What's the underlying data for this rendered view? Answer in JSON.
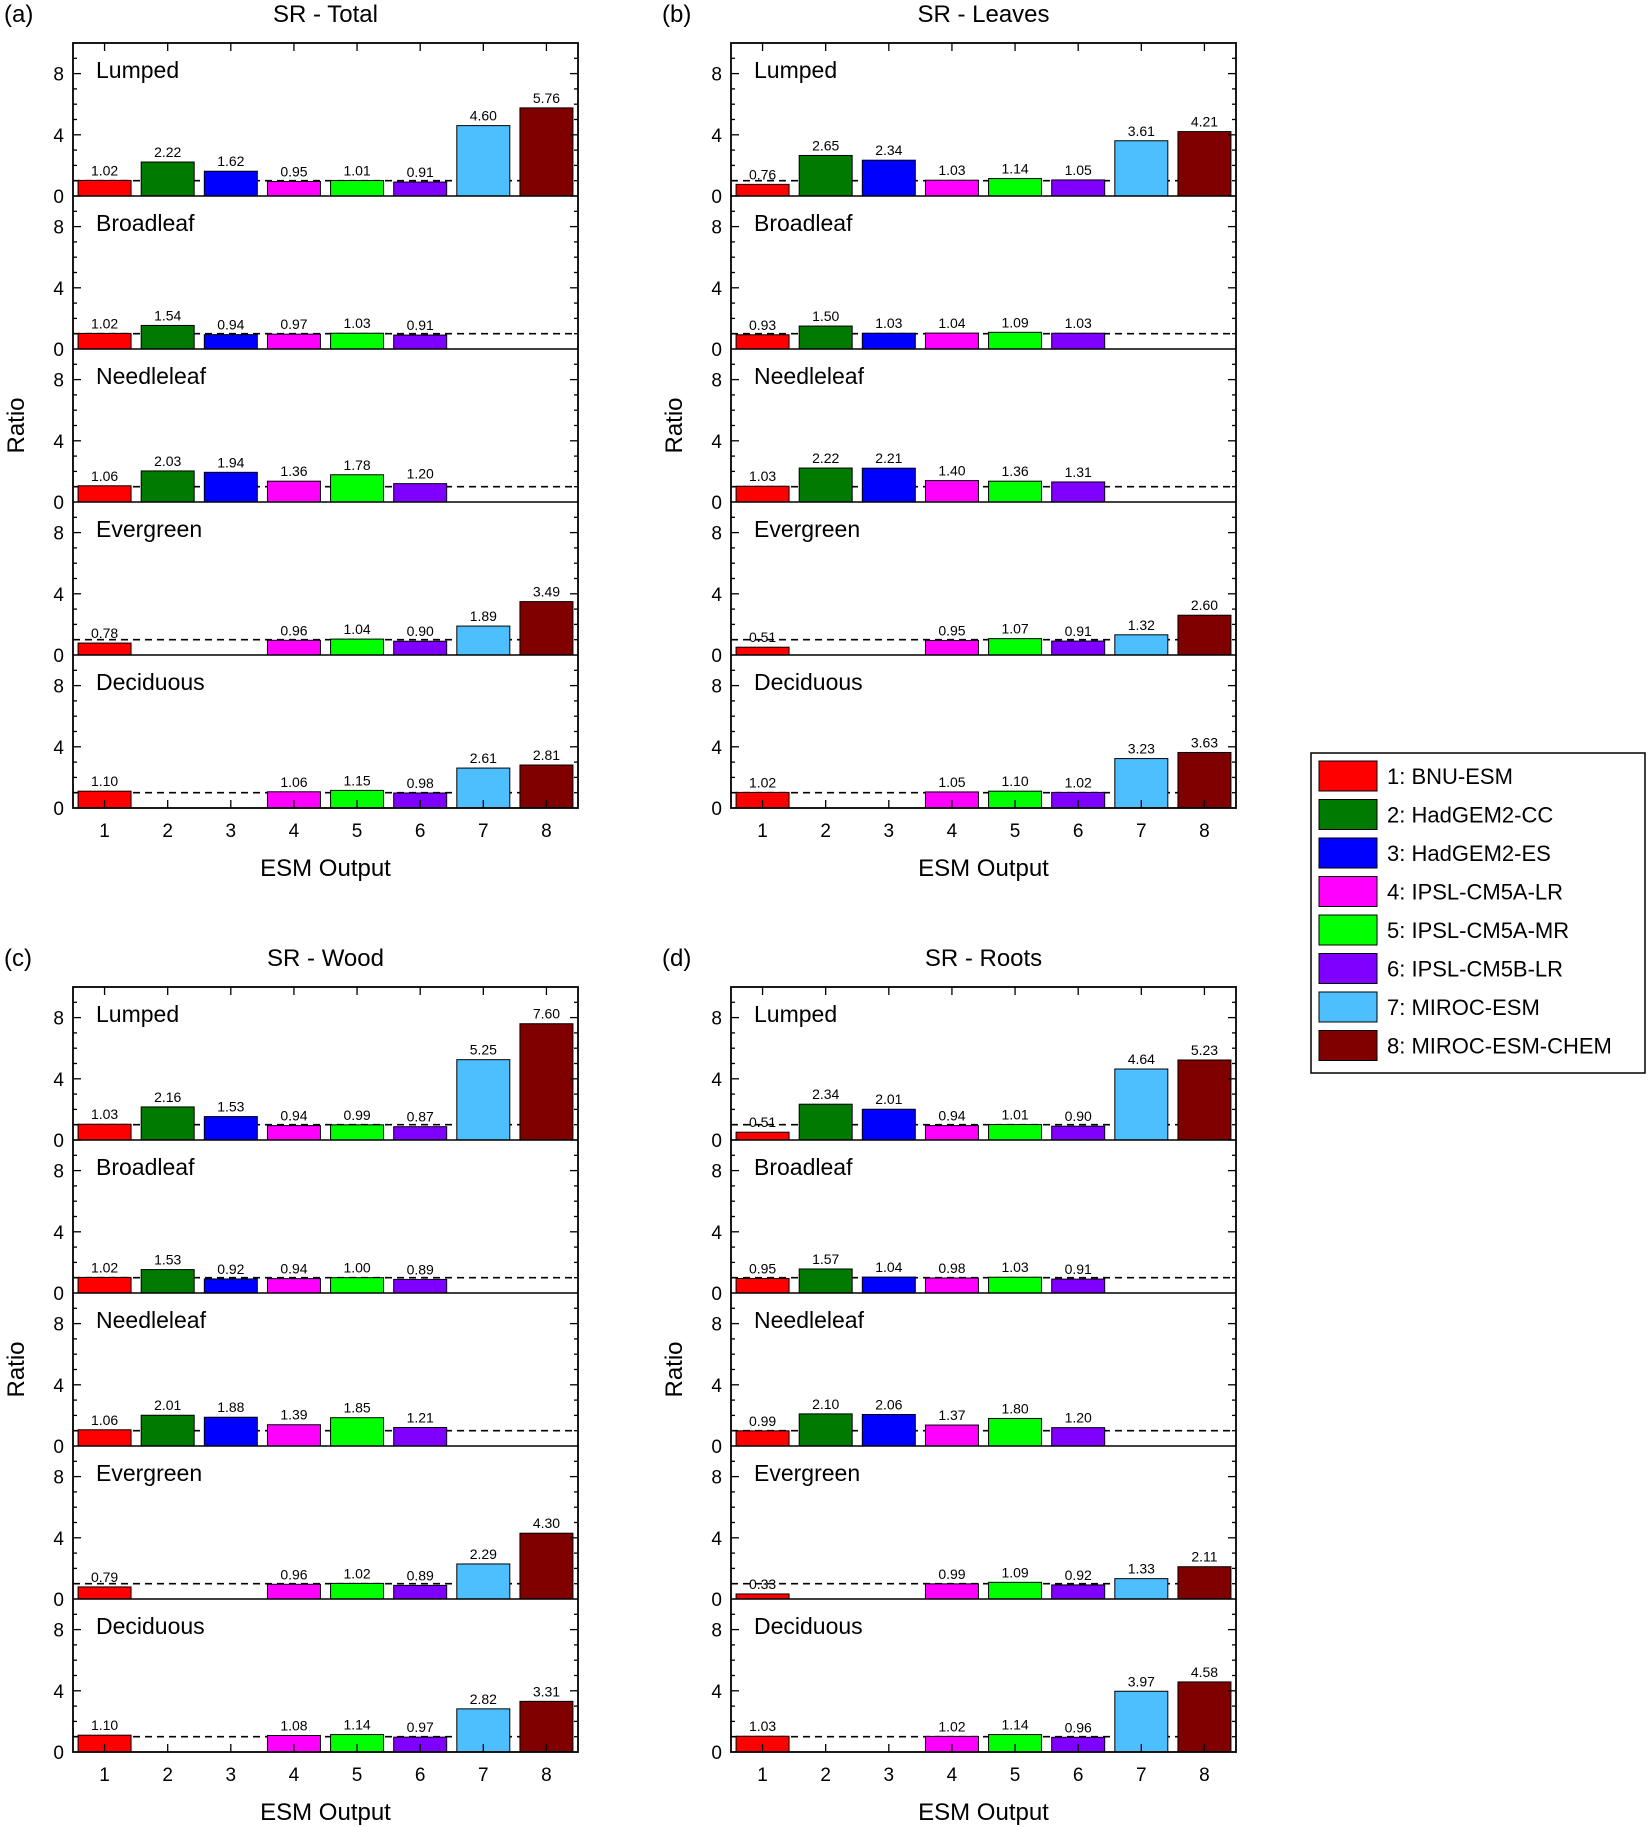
{
  "chart_data": [
    {
      "id": "a",
      "panel_label": "(a)",
      "type": "bar",
      "title": "SR - Total",
      "xlabel": "ESM Output",
      "ylabel": "Ratio",
      "categories": [
        "1",
        "2",
        "3",
        "4",
        "5",
        "6",
        "7",
        "8"
      ],
      "ylim": [
        0,
        10
      ],
      "yticks": [
        "0",
        "4",
        "8"
      ],
      "reference_line": 1,
      "subplots": [
        {
          "name": "Lumped",
          "values": [
            1.02,
            2.22,
            1.62,
            0.95,
            1.01,
            0.91,
            4.6,
            5.76
          ],
          "labels": [
            "1.02",
            "2.22",
            "1.62",
            "0.95",
            "1.01",
            "0.91",
            "4.60",
            "5.76"
          ]
        },
        {
          "name": "Broadleaf",
          "values": [
            1.02,
            1.54,
            0.94,
            0.97,
            1.03,
            0.91,
            null,
            null
          ],
          "labels": [
            "1.02",
            "1.54",
            "0.94",
            "0.97",
            "1.03",
            "0.91",
            "",
            ""
          ]
        },
        {
          "name": "Needleleaf",
          "values": [
            1.06,
            2.03,
            1.94,
            1.36,
            1.78,
            1.2,
            null,
            null
          ],
          "labels": [
            "1.06",
            "2.03",
            "1.94",
            "1.36",
            "1.78",
            "1.20",
            "",
            ""
          ]
        },
        {
          "name": "Evergreen",
          "values": [
            0.78,
            null,
            null,
            0.96,
            1.04,
            0.9,
            1.89,
            3.49
          ],
          "labels": [
            "0.78",
            "",
            "",
            "0.96",
            "1.04",
            "0.90",
            "1.89",
            "3.49"
          ]
        },
        {
          "name": "Deciduous",
          "values": [
            1.1,
            null,
            null,
            1.06,
            1.15,
            0.98,
            2.61,
            2.81
          ],
          "labels": [
            "1.10",
            "",
            "",
            "1.06",
            "1.15",
            "0.98",
            "2.61",
            "2.81"
          ]
        }
      ]
    },
    {
      "id": "b",
      "panel_label": "(b)",
      "type": "bar",
      "title": "SR - Leaves",
      "xlabel": "ESM Output",
      "ylabel": "Ratio",
      "categories": [
        "1",
        "2",
        "3",
        "4",
        "5",
        "6",
        "7",
        "8"
      ],
      "ylim": [
        0,
        10
      ],
      "yticks": [
        "0",
        "4",
        "8"
      ],
      "reference_line": 1,
      "subplots": [
        {
          "name": "Lumped",
          "values": [
            0.76,
            2.65,
            2.34,
            1.03,
            1.14,
            1.05,
            3.61,
            4.21
          ],
          "labels": [
            "0.76",
            "2.65",
            "2.34",
            "1.03",
            "1.14",
            "1.05",
            "3.61",
            "4.21"
          ]
        },
        {
          "name": "Broadleaf",
          "values": [
            0.93,
            1.5,
            1.03,
            1.04,
            1.09,
            1.03,
            null,
            null
          ],
          "labels": [
            "0.93",
            "1.50",
            "1.03",
            "1.04",
            "1.09",
            "1.03",
            "",
            ""
          ]
        },
        {
          "name": "Needleleaf",
          "values": [
            1.03,
            2.22,
            2.21,
            1.4,
            1.36,
            1.31,
            null,
            null
          ],
          "labels": [
            "1.03",
            "2.22",
            "2.21",
            "1.40",
            "1.36",
            "1.31",
            "",
            ""
          ]
        },
        {
          "name": "Evergreen",
          "values": [
            0.51,
            null,
            null,
            0.95,
            1.07,
            0.91,
            1.32,
            2.6
          ],
          "labels": [
            "0.51",
            "",
            "",
            "0.95",
            "1.07",
            "0.91",
            "1.32",
            "2.60"
          ]
        },
        {
          "name": "Deciduous",
          "values": [
            1.02,
            null,
            null,
            1.05,
            1.1,
            1.02,
            3.23,
            3.63
          ],
          "labels": [
            "1.02",
            "",
            "",
            "1.05",
            "1.10",
            "1.02",
            "3.23",
            "3.63"
          ]
        }
      ]
    },
    {
      "id": "c",
      "panel_label": "(c)",
      "type": "bar",
      "title": "SR - Wood",
      "xlabel": "ESM Output",
      "ylabel": "Ratio",
      "categories": [
        "1",
        "2",
        "3",
        "4",
        "5",
        "6",
        "7",
        "8"
      ],
      "ylim": [
        0,
        10
      ],
      "yticks": [
        "0",
        "4",
        "8"
      ],
      "reference_line": 1,
      "subplots": [
        {
          "name": "Lumped",
          "values": [
            1.03,
            2.16,
            1.53,
            0.94,
            0.99,
            0.87,
            5.25,
            7.6
          ],
          "labels": [
            "1.03",
            "2.16",
            "1.53",
            "0.94",
            "0.99",
            "0.87",
            "5.25",
            "7.60"
          ]
        },
        {
          "name": "Broadleaf",
          "values": [
            1.02,
            1.53,
            0.92,
            0.94,
            1.0,
            0.89,
            null,
            null
          ],
          "labels": [
            "1.02",
            "1.53",
            "0.92",
            "0.94",
            "1.00",
            "0.89",
            "",
            ""
          ]
        },
        {
          "name": "Needleleaf",
          "values": [
            1.06,
            2.01,
            1.88,
            1.39,
            1.85,
            1.21,
            null,
            null
          ],
          "labels": [
            "1.06",
            "2.01",
            "1.88",
            "1.39",
            "1.85",
            "1.21",
            "",
            ""
          ]
        },
        {
          "name": "Evergreen",
          "values": [
            0.79,
            null,
            null,
            0.96,
            1.02,
            0.89,
            2.29,
            4.3
          ],
          "labels": [
            "0.79",
            "",
            "",
            "0.96",
            "1.02",
            "0.89",
            "2.29",
            "4.30"
          ]
        },
        {
          "name": "Deciduous",
          "values": [
            1.1,
            null,
            null,
            1.08,
            1.14,
            0.97,
            2.82,
            3.31
          ],
          "labels": [
            "1.10",
            "",
            "",
            "1.08",
            "1.14",
            "0.97",
            "2.82",
            "3.31"
          ]
        }
      ]
    },
    {
      "id": "d",
      "panel_label": "(d)",
      "type": "bar",
      "title": "SR - Roots",
      "xlabel": "ESM Output",
      "ylabel": "Ratio",
      "categories": [
        "1",
        "2",
        "3",
        "4",
        "5",
        "6",
        "7",
        "8"
      ],
      "ylim": [
        0,
        10
      ],
      "yticks": [
        "0",
        "4",
        "8"
      ],
      "reference_line": 1,
      "subplots": [
        {
          "name": "Lumped",
          "values": [
            0.51,
            2.34,
            2.01,
            0.94,
            1.01,
            0.9,
            4.64,
            5.23
          ],
          "labels": [
            "0.51",
            "2.34",
            "2.01",
            "0.94",
            "1.01",
            "0.90",
            "4.64",
            "5.23"
          ]
        },
        {
          "name": "Broadleaf",
          "values": [
            0.95,
            1.57,
            1.04,
            0.98,
            1.03,
            0.91,
            null,
            null
          ],
          "labels": [
            "0.95",
            "1.57",
            "1.04",
            "0.98",
            "1.03",
            "0.91",
            "",
            ""
          ]
        },
        {
          "name": "Needleleaf",
          "values": [
            0.99,
            2.1,
            2.06,
            1.37,
            1.8,
            1.2,
            null,
            null
          ],
          "labels": [
            "0.99",
            "2.10",
            "2.06",
            "1.37",
            "1.80",
            "1.20",
            "",
            ""
          ]
        },
        {
          "name": "Evergreen",
          "values": [
            0.33,
            null,
            null,
            0.99,
            1.09,
            0.92,
            1.33,
            2.11
          ],
          "labels": [
            "0.33",
            "",
            "",
            "0.99",
            "1.09",
            "0.92",
            "1.33",
            "2.11"
          ]
        },
        {
          "name": "Deciduous",
          "values": [
            1.03,
            null,
            null,
            1.02,
            1.14,
            0.96,
            3.97,
            4.58
          ],
          "labels": [
            "1.03",
            "",
            "",
            "1.02",
            "1.14",
            "0.96",
            "3.97",
            "4.58"
          ]
        }
      ]
    }
  ],
  "legend": {
    "placement": "right",
    "items": [
      {
        "label": "1: BNU-ESM",
        "color": "#ff0000"
      },
      {
        "label": "2: HadGEM2-CC",
        "color": "#007a00"
      },
      {
        "label": "3: HadGEM2-ES",
        "color": "#0000ff"
      },
      {
        "label": "4: IPSL-CM5A-LR",
        "color": "#ff00ff"
      },
      {
        "label": "5: IPSL-CM5A-MR",
        "color": "#00ff00"
      },
      {
        "label": "6: IPSL-CM5B-LR",
        "color": "#8000ff"
      },
      {
        "label": "7: MIROC-ESM",
        "color": "#4dbfff"
      },
      {
        "label": "8: MIROC-ESM-CHEM",
        "color": "#800000"
      }
    ]
  }
}
